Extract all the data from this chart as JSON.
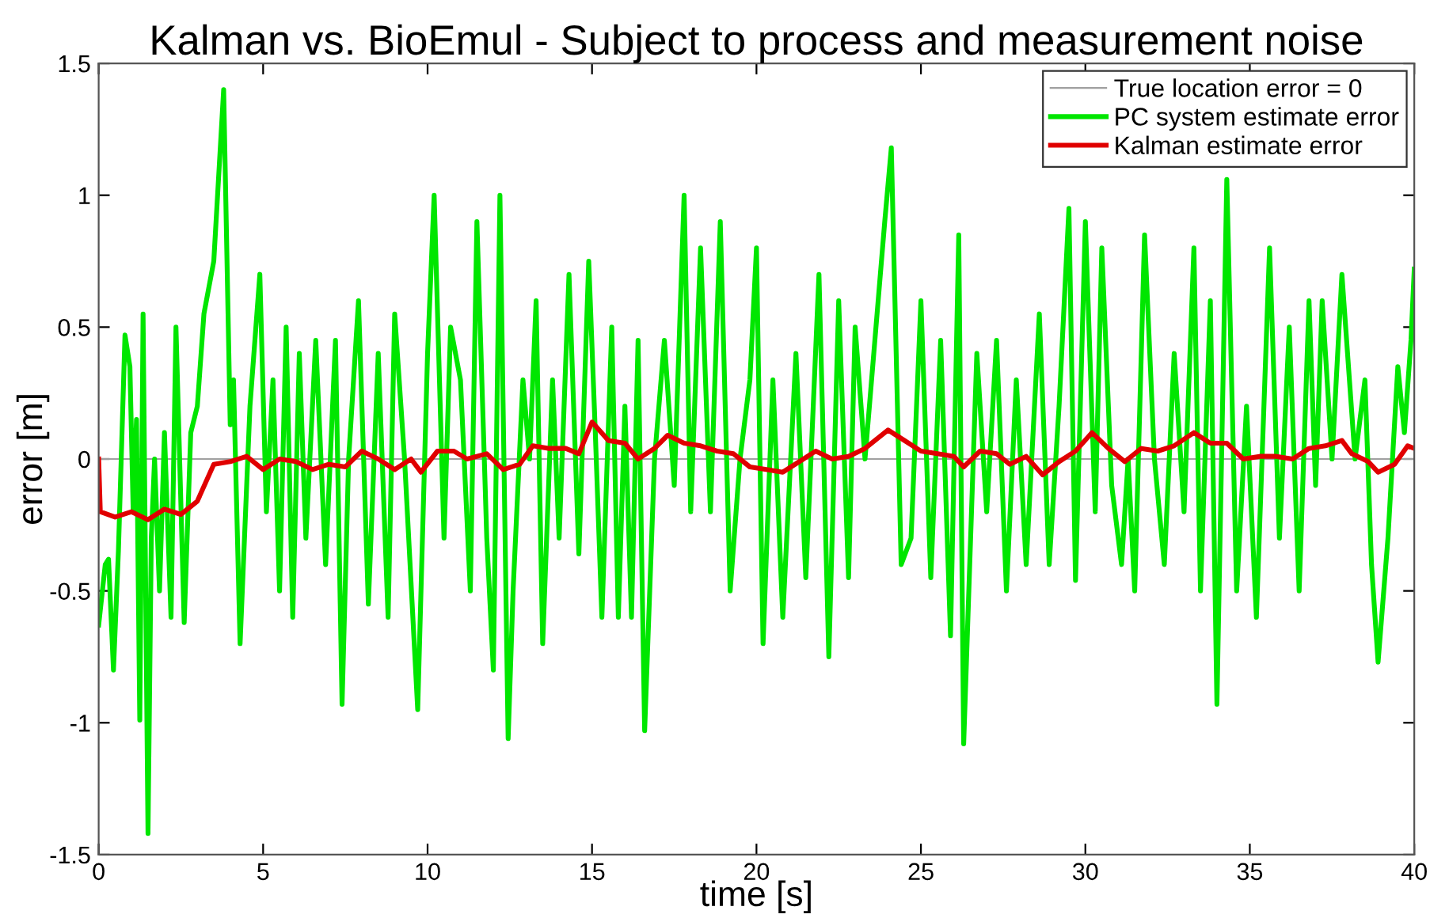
{
  "chart_data": {
    "type": "line",
    "title": "Kalman vs. BioEmul - Subject to process and measurement noise",
    "xlabel": "time [s]",
    "ylabel": "error [m]",
    "xlim": [
      0,
      40
    ],
    "xticks": [
      0,
      5,
      10,
      15,
      20,
      25,
      30,
      35,
      40
    ],
    "ylim": [
      -1.5,
      1.5
    ],
    "yticks": [
      -1.5,
      -1,
      -0.5,
      0,
      0.5,
      1,
      1.5
    ],
    "grid": false,
    "legend": "top right",
    "marker": "none",
    "line_style": "solid",
    "series": [
      {
        "name": "True location error = 0",
        "color": "#a0a0a0",
        "x": [
          0,
          40
        ],
        "values": [
          0,
          0
        ]
      },
      {
        "name": "PC system estimate error",
        "color": "#00e600",
        "x": [
          0,
          0.2,
          0.3,
          0.45,
          0.6,
          0.8,
          0.95,
          1.05,
          1.15,
          1.25,
          1.35,
          1.5,
          1.6,
          1.7,
          1.85,
          2.0,
          2.2,
          2.35,
          2.6,
          2.8,
          3.0,
          3.2,
          3.5,
          3.8,
          4.0,
          4.1,
          4.3,
          4.6,
          4.9,
          5.1,
          5.3,
          5.5,
          5.7,
          5.9,
          6.1,
          6.3,
          6.6,
          6.9,
          7.2,
          7.4,
          7.6,
          7.9,
          8.2,
          8.5,
          8.8,
          9.0,
          9.3,
          9.7,
          10.0,
          10.2,
          10.5,
          10.7,
          11.0,
          11.3,
          11.5,
          11.8,
          12.0,
          12.2,
          12.45,
          12.6,
          12.9,
          13.1,
          13.3,
          13.5,
          13.8,
          14.0,
          14.3,
          14.6,
          14.9,
          15.1,
          15.3,
          15.6,
          15.8,
          16.0,
          16.2,
          16.4,
          16.6,
          16.9,
          17.2,
          17.5,
          17.8,
          18.0,
          18.3,
          18.6,
          18.9,
          19.2,
          19.5,
          19.8,
          20.0,
          20.2,
          20.5,
          20.8,
          21.2,
          21.5,
          21.9,
          22.2,
          22.5,
          22.8,
          23.0,
          23.3,
          23.6,
          23.9,
          24.1,
          24.4,
          24.7,
          25.0,
          25.3,
          25.6,
          25.9,
          26.15,
          26.3,
          26.7,
          27.0,
          27.3,
          27.6,
          27.9,
          28.2,
          28.6,
          28.9,
          29.2,
          29.5,
          29.7,
          30.0,
          30.3,
          30.5,
          30.8,
          31.1,
          31.3,
          31.5,
          31.8,
          32.1,
          32.4,
          32.7,
          33.0,
          33.3,
          33.5,
          33.8,
          34.0,
          34.3,
          34.6,
          34.9,
          35.2,
          35.6,
          35.9,
          36.2,
          36.5,
          36.8,
          37.0,
          37.2,
          37.5,
          37.8,
          38.2,
          38.5,
          38.7,
          38.9,
          39.2,
          39.5,
          39.7,
          39.9,
          40.0
        ],
        "values": [
          -0.63,
          -0.4,
          -0.38,
          -0.8,
          -0.35,
          0.47,
          0.35,
          -0.2,
          0.15,
          -0.99,
          0.55,
          -1.42,
          -0.3,
          0.0,
          -0.5,
          0.1,
          -0.6,
          0.5,
          -0.62,
          0.1,
          0.2,
          0.55,
          0.75,
          1.4,
          0.13,
          0.3,
          -0.7,
          0.2,
          0.7,
          -0.2,
          0.3,
          -0.5,
          0.5,
          -0.6,
          0.4,
          -0.3,
          0.45,
          -0.4,
          0.45,
          -0.93,
          0.0,
          0.6,
          -0.55,
          0.4,
          -0.6,
          0.55,
          0.0,
          -0.95,
          0.4,
          1.0,
          -0.3,
          0.5,
          0.3,
          -0.5,
          0.9,
          -0.3,
          -0.8,
          1.0,
          -1.06,
          -0.5,
          0.3,
          0.0,
          0.6,
          -0.7,
          0.3,
          -0.3,
          0.7,
          -0.36,
          0.75,
          0.1,
          -0.6,
          0.5,
          -0.6,
          0.2,
          -0.6,
          0.45,
          -1.03,
          0.0,
          0.45,
          -0.1,
          1.0,
          -0.2,
          0.8,
          -0.2,
          0.9,
          -0.5,
          0.0,
          0.3,
          0.8,
          -0.7,
          0.3,
          -0.6,
          0.4,
          -0.45,
          0.7,
          -0.75,
          0.6,
          -0.45,
          0.5,
          0.0,
          0.45,
          0.9,
          1.18,
          -0.4,
          -0.3,
          0.6,
          -0.45,
          0.45,
          -0.67,
          0.85,
          -1.08,
          0.4,
          -0.2,
          0.45,
          -0.5,
          0.3,
          -0.4,
          0.55,
          -0.4,
          0.2,
          0.95,
          -0.46,
          0.9,
          -0.2,
          0.8,
          -0.1,
          -0.4,
          0.0,
          -0.5,
          0.85,
          0.0,
          -0.4,
          0.4,
          -0.2,
          0.8,
          -0.5,
          0.6,
          -0.93,
          1.06,
          -0.5,
          0.2,
          -0.6,
          0.8,
          -0.3,
          0.5,
          -0.5,
          0.6,
          -0.1,
          0.6,
          0.0,
          0.7,
          0.0,
          0.3,
          -0.4,
          -0.77,
          -0.3,
          0.35,
          0.1,
          0.45,
          0.72
        ]
      },
      {
        "name": "Kalman estimate error",
        "color": "#e00000",
        "x": [
          0,
          0.05,
          0.5,
          1.0,
          1.5,
          2.0,
          2.5,
          3.0,
          3.5,
          4.0,
          4.5,
          5.0,
          5.5,
          6.0,
          6.5,
          7.0,
          7.5,
          8.0,
          8.5,
          9.0,
          9.5,
          9.8,
          10.3,
          10.8,
          11.2,
          11.8,
          12.3,
          12.8,
          13.2,
          13.7,
          14.2,
          14.6,
          15.0,
          15.5,
          16.0,
          16.4,
          16.9,
          17.3,
          17.8,
          18.3,
          18.8,
          19.3,
          19.8,
          20.3,
          20.8,
          21.3,
          21.8,
          22.3,
          22.8,
          23.3,
          24.0,
          24.5,
          25.0,
          25.5,
          26.0,
          26.3,
          26.8,
          27.3,
          27.7,
          28.2,
          28.7,
          29.2,
          29.7,
          30.2,
          30.7,
          31.2,
          31.7,
          32.2,
          32.7,
          33.3,
          33.8,
          34.3,
          34.8,
          35.3,
          35.8,
          36.3,
          36.8,
          37.3,
          37.8,
          38.1,
          38.6,
          38.9,
          39.4,
          39.8,
          40.0
        ],
        "values": [
          0,
          -0.2,
          -0.22,
          -0.2,
          -0.23,
          -0.19,
          -0.21,
          -0.16,
          -0.02,
          -0.01,
          0.01,
          -0.04,
          0.0,
          -0.01,
          -0.04,
          -0.02,
          -0.03,
          0.03,
          0.0,
          -0.04,
          0.0,
          -0.05,
          0.03,
          0.03,
          0.0,
          0.02,
          -0.04,
          -0.02,
          0.05,
          0.04,
          0.04,
          0.02,
          0.14,
          0.07,
          0.06,
          0.0,
          0.04,
          0.09,
          0.06,
          0.05,
          0.03,
          0.02,
          -0.03,
          -0.04,
          -0.05,
          -0.01,
          0.03,
          0.0,
          0.01,
          0.04,
          0.11,
          0.07,
          0.03,
          0.02,
          0.01,
          -0.03,
          0.03,
          0.02,
          -0.02,
          0.01,
          -0.06,
          -0.01,
          0.03,
          0.1,
          0.04,
          -0.01,
          0.04,
          0.03,
          0.05,
          0.1,
          0.06,
          0.06,
          0.0,
          0.01,
          0.01,
          0.0,
          0.04,
          0.05,
          0.07,
          0.02,
          -0.01,
          -0.05,
          -0.02,
          0.05,
          0.04
        ]
      }
    ]
  }
}
